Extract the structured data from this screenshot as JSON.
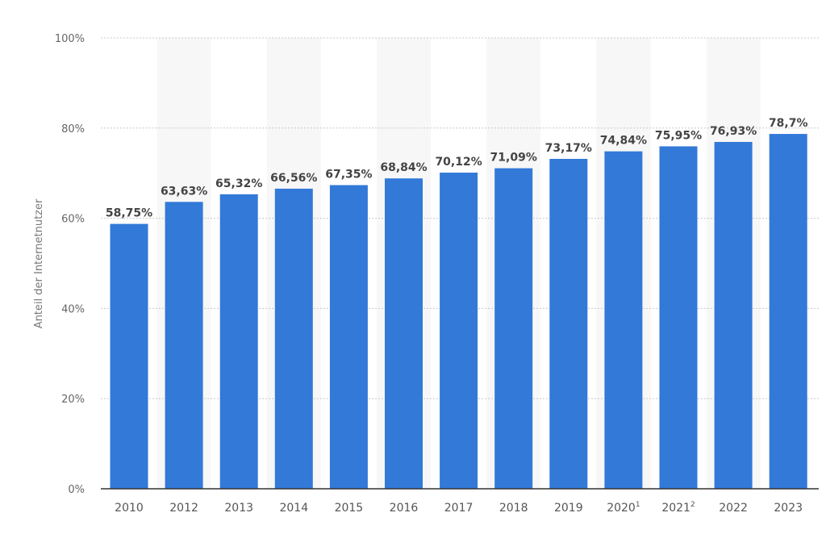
{
  "chart_data": {
    "type": "bar",
    "ylabel": "Anteil der Internetnutzer",
    "xlabel": "",
    "ylim": [
      0,
      100
    ],
    "y_ticks": [
      "0%",
      "20%",
      "40%",
      "60%",
      "80%",
      "100%"
    ],
    "y_tick_values": [
      0,
      20,
      40,
      60,
      80,
      100
    ],
    "grid": true,
    "categories": [
      {
        "label": "2010",
        "sup": ""
      },
      {
        "label": "2012",
        "sup": ""
      },
      {
        "label": "2013",
        "sup": ""
      },
      {
        "label": "2014",
        "sup": ""
      },
      {
        "label": "2015",
        "sup": ""
      },
      {
        "label": "2016",
        "sup": ""
      },
      {
        "label": "2017",
        "sup": ""
      },
      {
        "label": "2018",
        "sup": ""
      },
      {
        "label": "2019",
        "sup": ""
      },
      {
        "label": "2020",
        "sup": "1"
      },
      {
        "label": "2021",
        "sup": "2"
      },
      {
        "label": "2022",
        "sup": ""
      },
      {
        "label": "2023",
        "sup": ""
      }
    ],
    "values": [
      58.75,
      63.63,
      65.32,
      66.56,
      67.35,
      68.84,
      70.12,
      71.09,
      73.17,
      74.84,
      75.95,
      76.93,
      78.7
    ],
    "data_labels": [
      "58,75%",
      "63,63%",
      "65,32%",
      "66,56%",
      "67,35%",
      "68,84%",
      "70,12%",
      "71,09%",
      "73,17%",
      "74,84%",
      "75,95%",
      "76,93%",
      "78,7%"
    ],
    "colors": {
      "bar": "#3279d8",
      "band": "#f7f7f7",
      "grid": "#c8c8c8",
      "axis": "#333333"
    }
  }
}
